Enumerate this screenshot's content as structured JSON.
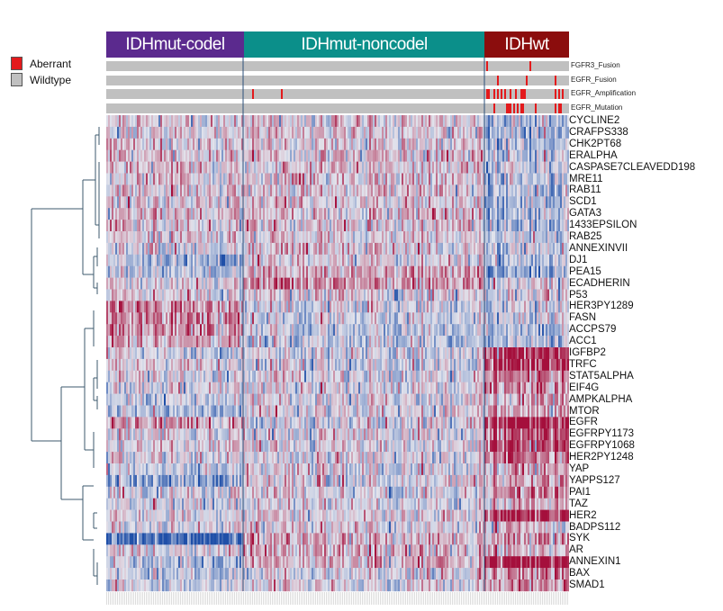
{
  "legend": {
    "items": [
      {
        "label": "Aberrant",
        "color": "#e31a1c"
      },
      {
        "label": "Wildtype",
        "color": "#c0c0c0"
      }
    ]
  },
  "chart_data": {
    "type": "heatmap",
    "groups": [
      {
        "label": "IDHmut-codel",
        "color": "#5b2a8e",
        "samples": 76
      },
      {
        "label": "IDHmut-noncodel",
        "color": "#0b8f8a",
        "samples": 134
      },
      {
        "label": "IDHwt",
        "color": "#8b0d0d",
        "samples": 47
      }
    ],
    "annotation_tracks": [
      {
        "label": "FGFR3_Fusion",
        "aberrant_samples": [
          211,
          235
        ]
      },
      {
        "label": "EGFR_Fusion",
        "aberrant_samples": [
          217,
          233,
          249
        ]
      },
      {
        "label": "EGFR_Amplification",
        "aberrant_samples": [
          81,
          97,
          211,
          212,
          215,
          217,
          219,
          221,
          224,
          227,
          230,
          231,
          232,
          249,
          251,
          253
        ]
      },
      {
        "label": "EGFR_Mutation",
        "aberrant_samples": [
          215,
          222,
          223,
          224,
          226,
          228,
          230,
          231,
          238,
          249,
          251,
          252
        ]
      }
    ],
    "colors": {
      "low": "#1f4fa8",
      "mid": "#e2e3ec",
      "high": "#a50f3c"
    },
    "rows": [
      {
        "label": "CYCLINE2",
        "group_means": [
          0.1,
          0.1,
          -0.3
        ]
      },
      {
        "label": "CRAFPS338",
        "group_means": [
          0.1,
          0.1,
          -0.3
        ]
      },
      {
        "label": "CHK2PT68",
        "group_means": [
          0.1,
          0.1,
          -0.3
        ]
      },
      {
        "label": "ERALPHA",
        "group_means": [
          0.1,
          0.1,
          -0.2
        ]
      },
      {
        "label": "CASPASE7CLEAVEDD198",
        "group_means": [
          0.1,
          0.1,
          -0.2
        ]
      },
      {
        "label": "MRE11",
        "group_means": [
          0.1,
          0.1,
          -0.3
        ]
      },
      {
        "label": "RAB11",
        "group_means": [
          0.1,
          0.1,
          -0.3
        ]
      },
      {
        "label": "SCD1",
        "group_means": [
          0.1,
          0.1,
          -0.3
        ]
      },
      {
        "label": "GATA3",
        "group_means": [
          0.15,
          0.1,
          -0.3
        ]
      },
      {
        "label": "1433EPSILON",
        "group_means": [
          0.1,
          0.1,
          -0.3
        ]
      },
      {
        "label": "RAB25",
        "group_means": [
          0.1,
          0.05,
          -0.2
        ]
      },
      {
        "label": "ANNEXINVII",
        "group_means": [
          0.0,
          0.1,
          -0.2
        ]
      },
      {
        "label": "DJ1",
        "group_means": [
          -0.3,
          0.1,
          -0.2
        ]
      },
      {
        "label": "PEA15",
        "group_means": [
          -0.2,
          0.3,
          -0.5
        ]
      },
      {
        "label": "ECADHERIN",
        "group_means": [
          0.0,
          0.4,
          -0.1
        ]
      },
      {
        "label": "P53",
        "group_means": [
          0.0,
          0.05,
          0.0
        ]
      },
      {
        "label": "HER3PY1289",
        "group_means": [
          0.4,
          -0.1,
          -0.2
        ]
      },
      {
        "label": "FASN",
        "group_means": [
          0.4,
          -0.1,
          -0.1
        ]
      },
      {
        "label": "ACCPS79",
        "group_means": [
          0.4,
          -0.2,
          -0.3
        ]
      },
      {
        "label": "ACC1",
        "group_means": [
          0.3,
          -0.2,
          -0.3
        ]
      },
      {
        "label": "IGFBP2",
        "group_means": [
          -0.1,
          -0.1,
          0.8
        ]
      },
      {
        "label": "TRFC",
        "group_means": [
          0.1,
          -0.1,
          0.8
        ]
      },
      {
        "label": "STAT5ALPHA",
        "group_means": [
          0.0,
          0.0,
          0.4
        ]
      },
      {
        "label": "EIF4G",
        "group_means": [
          0.0,
          0.0,
          0.3
        ]
      },
      {
        "label": "AMPKALPHA",
        "group_means": [
          -0.1,
          0.0,
          0.2
        ]
      },
      {
        "label": "MTOR",
        "group_means": [
          -0.2,
          0.0,
          0.2
        ]
      },
      {
        "label": "EGFR",
        "group_means": [
          0.3,
          -0.1,
          0.9
        ]
      },
      {
        "label": "EGFRPY1173",
        "group_means": [
          0.0,
          0.0,
          0.6
        ]
      },
      {
        "label": "EGFRPY1068",
        "group_means": [
          0.1,
          0.0,
          0.7
        ]
      },
      {
        "label": "HER2PY1248",
        "group_means": [
          0.0,
          0.0,
          0.5
        ]
      },
      {
        "label": "YAP",
        "group_means": [
          -0.1,
          0.0,
          0.2
        ]
      },
      {
        "label": "YAPPS127",
        "group_means": [
          -0.4,
          0.0,
          0.2
        ]
      },
      {
        "label": "PAI1",
        "group_means": [
          0.0,
          0.0,
          0.4
        ]
      },
      {
        "label": "TAZ",
        "group_means": [
          0.0,
          0.0,
          0.2
        ]
      },
      {
        "label": "HER2",
        "group_means": [
          0.0,
          0.0,
          0.8
        ]
      },
      {
        "label": "BADPS112",
        "group_means": [
          0.0,
          0.0,
          0.1
        ]
      },
      {
        "label": "SYK",
        "group_means": [
          -0.8,
          0.2,
          0.2
        ]
      },
      {
        "label": "AR",
        "group_means": [
          0.0,
          0.2,
          0.1
        ]
      },
      {
        "label": "ANNEXIN1",
        "group_means": [
          -0.2,
          0.2,
          0.9
        ]
      },
      {
        "label": "BAX",
        "group_means": [
          -0.2,
          0.0,
          0.3
        ]
      },
      {
        "label": "SMAD1",
        "group_means": [
          -0.1,
          0.0,
          0.3
        ]
      }
    ]
  }
}
